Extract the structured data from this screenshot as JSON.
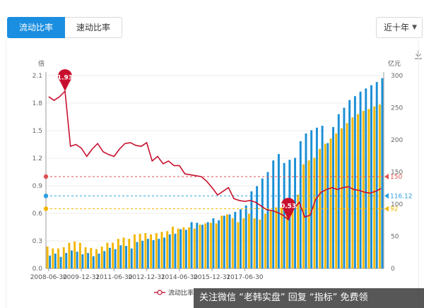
{
  "tabs": [
    {
      "label": "流动比率",
      "active": true
    },
    {
      "label": "速动比率",
      "active": false
    }
  ],
  "range_select": {
    "value": "近十年"
  },
  "watermark": {
    "text": "关注微信 “老韩实盘” 回复 “指标” 免费领"
  },
  "colors": {
    "ratio_line": "#c8102e",
    "bar_blue": "#1b8fd6",
    "bar_yellow": "#f2b705",
    "ref_red": "#e05050",
    "ref_blue": "#2aa0e0",
    "ref_yellow": "#f2b705"
  },
  "chart_data": {
    "type": "bar",
    "left_axis_unit": "倍",
    "right_axis_unit": "亿元",
    "left_ticks": [
      "0.0",
      "0.3",
      "0.6",
      "0.9",
      "1.2",
      "1.5",
      "1.8",
      "2.1"
    ],
    "right_ticks": [
      "0",
      "50",
      "100",
      "150",
      "200",
      "250",
      "300"
    ],
    "ylim_left": [
      0,
      2.1
    ],
    "ylim_right": [
      0,
      300
    ],
    "x_tick_labels": [
      "2008-06-30",
      "2009-12-31",
      "2011-06-30",
      "2012-12-31",
      "2014-06-30",
      "2015-12-31",
      "2017-06-30"
    ],
    "x_start": "2008-06-30",
    "quarterly": true,
    "grid": true,
    "series": [
      {
        "name": "流动比率",
        "type": "line",
        "axis": "left",
        "values": [
          1.87,
          1.83,
          1.87,
          1.93,
          1.33,
          1.35,
          1.31,
          1.22,
          1.3,
          1.36,
          1.27,
          1.24,
          1.22,
          1.3,
          1.36,
          1.37,
          1.34,
          1.33,
          1.37,
          1.17,
          1.22,
          1.14,
          1.17,
          1.12,
          1.12,
          1.03,
          1.02,
          1.01,
          1.0,
          0.95,
          0.88,
          0.8,
          0.84,
          0.88,
          0.76,
          0.74,
          0.73,
          0.74,
          0.72,
          0.68,
          0.64,
          0.63,
          0.61,
          0.58,
          0.53,
          0.65,
          0.72,
          0.56,
          0.58,
          0.75,
          0.83,
          0.86,
          0.88,
          0.86,
          0.88,
          0.89,
          0.86,
          0.85,
          0.83,
          0.82,
          0.84,
          0.87
        ]
      },
      {
        "name": "",
        "type": "bar",
        "axis": "right",
        "values": [
          20,
          23,
          18,
          24,
          28,
          26,
          22,
          24,
          19,
          23,
          27,
          32,
          30,
          36,
          35,
          31,
          41,
          43,
          46,
          44,
          46,
          48,
          53,
          54,
          61,
          60,
          72,
          71,
          68,
          72,
          78,
          75,
          82,
          84,
          88,
          92,
          98,
          120,
          128,
          140,
          150,
          168,
          178,
          164,
          169,
          172,
          198,
          210,
          215,
          219,
          222,
          195,
          220,
          240,
          250,
          262,
          268,
          275,
          280,
          285,
          290,
          296
        ]
      },
      {
        "name": "",
        "type": "bar",
        "axis": "right",
        "values": [
          34,
          31,
          31,
          33,
          40,
          42,
          40,
          33,
          32,
          30,
          34,
          40,
          40,
          46,
          48,
          46,
          53,
          54,
          55,
          53,
          55,
          57,
          58,
          65,
          62,
          64,
          64,
          62,
          68,
          70,
          71,
          70,
          82,
          84,
          78,
          72,
          78,
          85,
          78,
          76,
          85,
          90,
          95,
          95,
          97,
          104,
          115,
          162,
          168,
          172,
          186,
          194,
          202,
          210,
          218,
          226,
          235,
          240,
          245,
          248,
          252,
          255
        ]
      }
    ],
    "reference_lines": [
      {
        "axis": "left",
        "value": 1.0,
        "label": "150"
      },
      {
        "axis": "left",
        "value": 0.79,
        "label": "116.12"
      },
      {
        "axis": "left",
        "value": 0.65,
        "label": "92"
      }
    ],
    "annotations": [
      {
        "label": "1.93",
        "series": "流动比率",
        "index": 3
      },
      {
        "label": "0.53",
        "series": "流动比率",
        "index": 44
      }
    ]
  }
}
